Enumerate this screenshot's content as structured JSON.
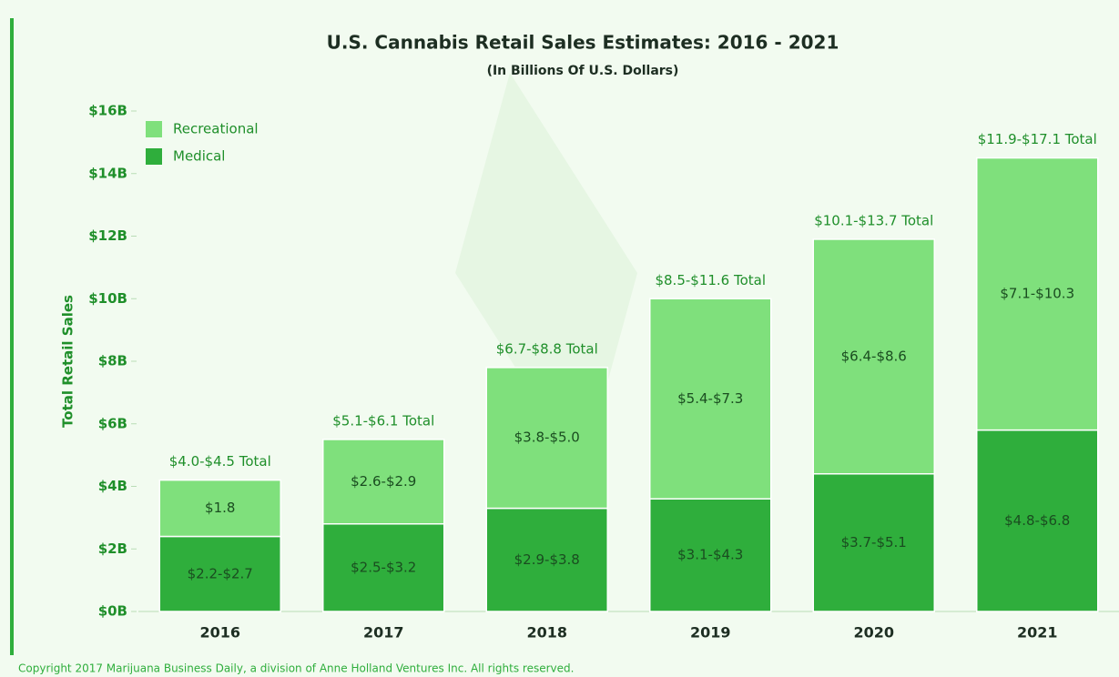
{
  "chart_data": {
    "type": "stacked_bar",
    "title": "U.S. Cannabis Retail Sales Estimates: 2016 - 2021",
    "subtitle": "(In Billions Of U.S. Dollars)",
    "y_label": "Total Retail Sales",
    "categories": [
      "2016",
      "2017",
      "2018",
      "2019",
      "2020",
      "2021"
    ],
    "series": [
      {
        "name": "Medical",
        "color": "#2fae3c",
        "values": [
          2.4,
          2.8,
          3.3,
          3.6,
          4.4,
          5.8
        ],
        "value_labels": [
          "$2.2-$2.7",
          "$2.5-$3.2",
          "$2.9-$3.8",
          "$3.1-$4.3",
          "$3.7-$5.1",
          "$4.8-$6.8"
        ]
      },
      {
        "name": "Recreational",
        "color": "#7fe07c",
        "values": [
          1.8,
          2.7,
          4.5,
          6.4,
          7.5,
          8.7
        ],
        "value_labels": [
          "$1.8",
          "$2.6-$2.9",
          "$3.8-$5.0",
          "$5.4-$7.3",
          "$6.4-$8.6",
          "$7.1-$10.3"
        ]
      }
    ],
    "total_labels": [
      "$4.0-$4.5 Total",
      "$5.1-$6.1 Total",
      "$6.7-$8.8 Total",
      "$8.5-$11.6 Total",
      "$10.1-$13.7 Total",
      "$11.9-$17.1 Total"
    ],
    "ylim": [
      0,
      16
    ],
    "yticks": [
      {
        "value": 0,
        "label": "$0B"
      },
      {
        "value": 2,
        "label": "$2B"
      },
      {
        "value": 4,
        "label": "$4B"
      },
      {
        "value": 6,
        "label": "$6B"
      },
      {
        "value": 8,
        "label": "$8B"
      },
      {
        "value": 10,
        "label": "$10B"
      },
      {
        "value": 12,
        "label": "$12B"
      },
      {
        "value": 14,
        "label": "$14B"
      },
      {
        "value": 16,
        "label": "$16B"
      }
    ],
    "legend": "top-left",
    "footnote": "Copyright 2017 Marijuana Business Daily, a division of Anne Holland Ventures Inc. All rights reserved."
  }
}
